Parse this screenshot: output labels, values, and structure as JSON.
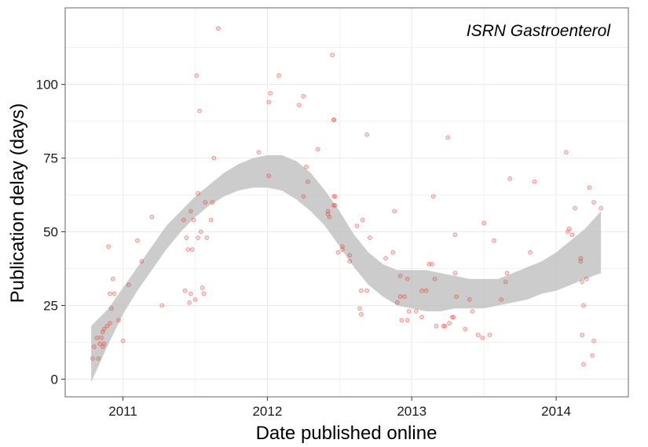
{
  "chart_data": {
    "type": "scatter",
    "annotation": "ISRN Gastroenterol",
    "xlabel": "Date published online",
    "ylabel": "Publication delay (days)",
    "xlim": [
      2010.6,
      2014.5
    ],
    "ylim": [
      -6,
      126
    ],
    "x_ticks": [
      2011,
      2012,
      2013,
      2014
    ],
    "x_tick_labels": [
      "2011",
      "2012",
      "2013",
      "2014"
    ],
    "y_ticks": [
      0,
      25,
      50,
      75,
      100
    ],
    "y_tick_labels": [
      "0",
      "25",
      "50",
      "75",
      "100"
    ],
    "grid": true,
    "colors": {
      "points": "#e8453c",
      "band": "#bdbdbd",
      "panel_border": "#7f7f7f",
      "grid": "#ebebeb"
    },
    "points": [
      {
        "x": 2010.79,
        "y": 7
      },
      {
        "x": 2010.8,
        "y": 11
      },
      {
        "x": 2010.82,
        "y": 14
      },
      {
        "x": 2010.83,
        "y": 7
      },
      {
        "x": 2010.84,
        "y": 12
      },
      {
        "x": 2010.85,
        "y": 14
      },
      {
        "x": 2010.86,
        "y": 16
      },
      {
        "x": 2010.86,
        "y": 11
      },
      {
        "x": 2010.87,
        "y": 12
      },
      {
        "x": 2010.87,
        "y": 17
      },
      {
        "x": 2010.89,
        "y": 18
      },
      {
        "x": 2010.9,
        "y": 45
      },
      {
        "x": 2010.91,
        "y": 19
      },
      {
        "x": 2010.91,
        "y": 29
      },
      {
        "x": 2010.92,
        "y": 24
      },
      {
        "x": 2010.93,
        "y": 34
      },
      {
        "x": 2010.94,
        "y": 29
      },
      {
        "x": 2010.97,
        "y": 20
      },
      {
        "x": 2011.0,
        "y": 13
      },
      {
        "x": 2011.04,
        "y": 32
      },
      {
        "x": 2011.1,
        "y": 47
      },
      {
        "x": 2011.13,
        "y": 40
      },
      {
        "x": 2011.2,
        "y": 55
      },
      {
        "x": 2011.27,
        "y": 25
      },
      {
        "x": 2011.42,
        "y": 54
      },
      {
        "x": 2011.43,
        "y": 30
      },
      {
        "x": 2011.44,
        "y": 48
      },
      {
        "x": 2011.45,
        "y": 44
      },
      {
        "x": 2011.46,
        "y": 26
      },
      {
        "x": 2011.47,
        "y": 57
      },
      {
        "x": 2011.47,
        "y": 29
      },
      {
        "x": 2011.48,
        "y": 44
      },
      {
        "x": 2011.49,
        "y": 54
      },
      {
        "x": 2011.5,
        "y": 27
      },
      {
        "x": 2011.52,
        "y": 63
      },
      {
        "x": 2011.51,
        "y": 103
      },
      {
        "x": 2011.52,
        "y": 48
      },
      {
        "x": 2011.53,
        "y": 91
      },
      {
        "x": 2011.54,
        "y": 50
      },
      {
        "x": 2011.55,
        "y": 31
      },
      {
        "x": 2011.56,
        "y": 29
      },
      {
        "x": 2011.57,
        "y": 60
      },
      {
        "x": 2011.58,
        "y": 48
      },
      {
        "x": 2011.61,
        "y": 54
      },
      {
        "x": 2011.62,
        "y": 60
      },
      {
        "x": 2011.63,
        "y": 75
      },
      {
        "x": 2011.66,
        "y": 119
      },
      {
        "x": 2011.94,
        "y": 77
      },
      {
        "x": 2012.01,
        "y": 94
      },
      {
        "x": 2012.01,
        "y": 69
      },
      {
        "x": 2012.02,
        "y": 97
      },
      {
        "x": 2012.08,
        "y": 103
      },
      {
        "x": 2012.22,
        "y": 93
      },
      {
        "x": 2012.25,
        "y": 96
      },
      {
        "x": 2012.25,
        "y": 62
      },
      {
        "x": 2012.27,
        "y": 72
      },
      {
        "x": 2012.28,
        "y": 67
      },
      {
        "x": 2012.35,
        "y": 78
      },
      {
        "x": 2012.42,
        "y": 56
      },
      {
        "x": 2012.42,
        "y": 57
      },
      {
        "x": 2012.43,
        "y": 55
      },
      {
        "x": 2012.45,
        "y": 110
      },
      {
        "x": 2012.46,
        "y": 88
      },
      {
        "x": 2012.46,
        "y": 88
      },
      {
        "x": 2012.46,
        "y": 62
      },
      {
        "x": 2012.46,
        "y": 59
      },
      {
        "x": 2012.47,
        "y": 59
      },
      {
        "x": 2012.47,
        "y": 62
      },
      {
        "x": 2012.49,
        "y": 43
      },
      {
        "x": 2012.52,
        "y": 45
      },
      {
        "x": 2012.52,
        "y": 44
      },
      {
        "x": 2012.57,
        "y": 42
      },
      {
        "x": 2012.57,
        "y": 40
      },
      {
        "x": 2012.62,
        "y": 52
      },
      {
        "x": 2012.64,
        "y": 24
      },
      {
        "x": 2012.65,
        "y": 30
      },
      {
        "x": 2012.65,
        "y": 22
      },
      {
        "x": 2012.66,
        "y": 54
      },
      {
        "x": 2012.69,
        "y": 83
      },
      {
        "x": 2012.69,
        "y": 30
      },
      {
        "x": 2012.71,
        "y": 48
      },
      {
        "x": 2012.82,
        "y": 41
      },
      {
        "x": 2012.87,
        "y": 43
      },
      {
        "x": 2012.88,
        "y": 57
      },
      {
        "x": 2012.9,
        "y": 26
      },
      {
        "x": 2012.92,
        "y": 35
      },
      {
        "x": 2012.92,
        "y": 28
      },
      {
        "x": 2012.93,
        "y": 20
      },
      {
        "x": 2012.95,
        "y": 28
      },
      {
        "x": 2012.97,
        "y": 34
      },
      {
        "x": 2012.97,
        "y": 20
      },
      {
        "x": 2012.98,
        "y": 23
      },
      {
        "x": 2013.03,
        "y": 23
      },
      {
        "x": 2013.07,
        "y": 30
      },
      {
        "x": 2013.07,
        "y": 21
      },
      {
        "x": 2013.1,
        "y": 30
      },
      {
        "x": 2013.12,
        "y": 39
      },
      {
        "x": 2013.14,
        "y": 39
      },
      {
        "x": 2013.15,
        "y": 62
      },
      {
        "x": 2013.16,
        "y": 34
      },
      {
        "x": 2013.17,
        "y": 18
      },
      {
        "x": 2013.22,
        "y": 18
      },
      {
        "x": 2013.23,
        "y": 18
      },
      {
        "x": 2013.25,
        "y": 82
      },
      {
        "x": 2013.26,
        "y": 19
      },
      {
        "x": 2013.28,
        "y": 21
      },
      {
        "x": 2013.29,
        "y": 21
      },
      {
        "x": 2013.3,
        "y": 49
      },
      {
        "x": 2013.3,
        "y": 36
      },
      {
        "x": 2013.31,
        "y": 28
      },
      {
        "x": 2013.37,
        "y": 17
      },
      {
        "x": 2013.4,
        "y": 27
      },
      {
        "x": 2013.42,
        "y": 23
      },
      {
        "x": 2013.46,
        "y": 15
      },
      {
        "x": 2013.49,
        "y": 14
      },
      {
        "x": 2013.5,
        "y": 53
      },
      {
        "x": 2013.54,
        "y": 15
      },
      {
        "x": 2013.57,
        "y": 47
      },
      {
        "x": 2013.62,
        "y": 27
      },
      {
        "x": 2013.65,
        "y": 33
      },
      {
        "x": 2013.66,
        "y": 36
      },
      {
        "x": 2013.68,
        "y": 68
      },
      {
        "x": 2013.82,
        "y": 43
      },
      {
        "x": 2013.85,
        "y": 67
      },
      {
        "x": 2014.07,
        "y": 77
      },
      {
        "x": 2014.08,
        "y": 50
      },
      {
        "x": 2014.09,
        "y": 51
      },
      {
        "x": 2014.11,
        "y": 49
      },
      {
        "x": 2014.13,
        "y": 58
      },
      {
        "x": 2014.17,
        "y": 41
      },
      {
        "x": 2014.17,
        "y": 40
      },
      {
        "x": 2014.18,
        "y": 15
      },
      {
        "x": 2014.18,
        "y": 33
      },
      {
        "x": 2014.19,
        "y": 25
      },
      {
        "x": 2014.19,
        "y": 5
      },
      {
        "x": 2014.21,
        "y": 34
      },
      {
        "x": 2014.23,
        "y": 65
      },
      {
        "x": 2014.25,
        "y": 8
      },
      {
        "x": 2014.26,
        "y": 13
      },
      {
        "x": 2014.26,
        "y": 60
      },
      {
        "x": 2014.31,
        "y": 58
      }
    ],
    "band": {
      "x": [
        2010.78,
        2010.9,
        2011.0,
        2011.1,
        2011.2,
        2011.3,
        2011.4,
        2011.5,
        2011.6,
        2011.7,
        2011.8,
        2011.9,
        2012.0,
        2012.1,
        2012.2,
        2012.3,
        2012.4,
        2012.5,
        2012.6,
        2012.7,
        2012.8,
        2012.9,
        2013.0,
        2013.1,
        2013.2,
        2013.3,
        2013.4,
        2013.5,
        2013.6,
        2013.7,
        2013.8,
        2013.9,
        2014.0,
        2014.1,
        2014.2,
        2014.31
      ],
      "upper": [
        18,
        24,
        31,
        38,
        45,
        52,
        57,
        62,
        66,
        70,
        73,
        75,
        76,
        76,
        74,
        70,
        64,
        57,
        49,
        43,
        39,
        37,
        37,
        37,
        36,
        35,
        34,
        34,
        34,
        36,
        38,
        40,
        43,
        47,
        51,
        57
      ],
      "lower": [
        -1,
        12,
        22,
        30,
        37,
        44,
        50,
        55,
        59,
        62,
        64,
        65,
        65,
        64,
        61,
        57,
        52,
        45,
        38,
        32,
        28,
        25,
        24,
        23,
        23,
        24,
        24,
        24,
        25,
        26,
        27,
        29,
        30,
        32,
        34,
        36
      ]
    }
  }
}
